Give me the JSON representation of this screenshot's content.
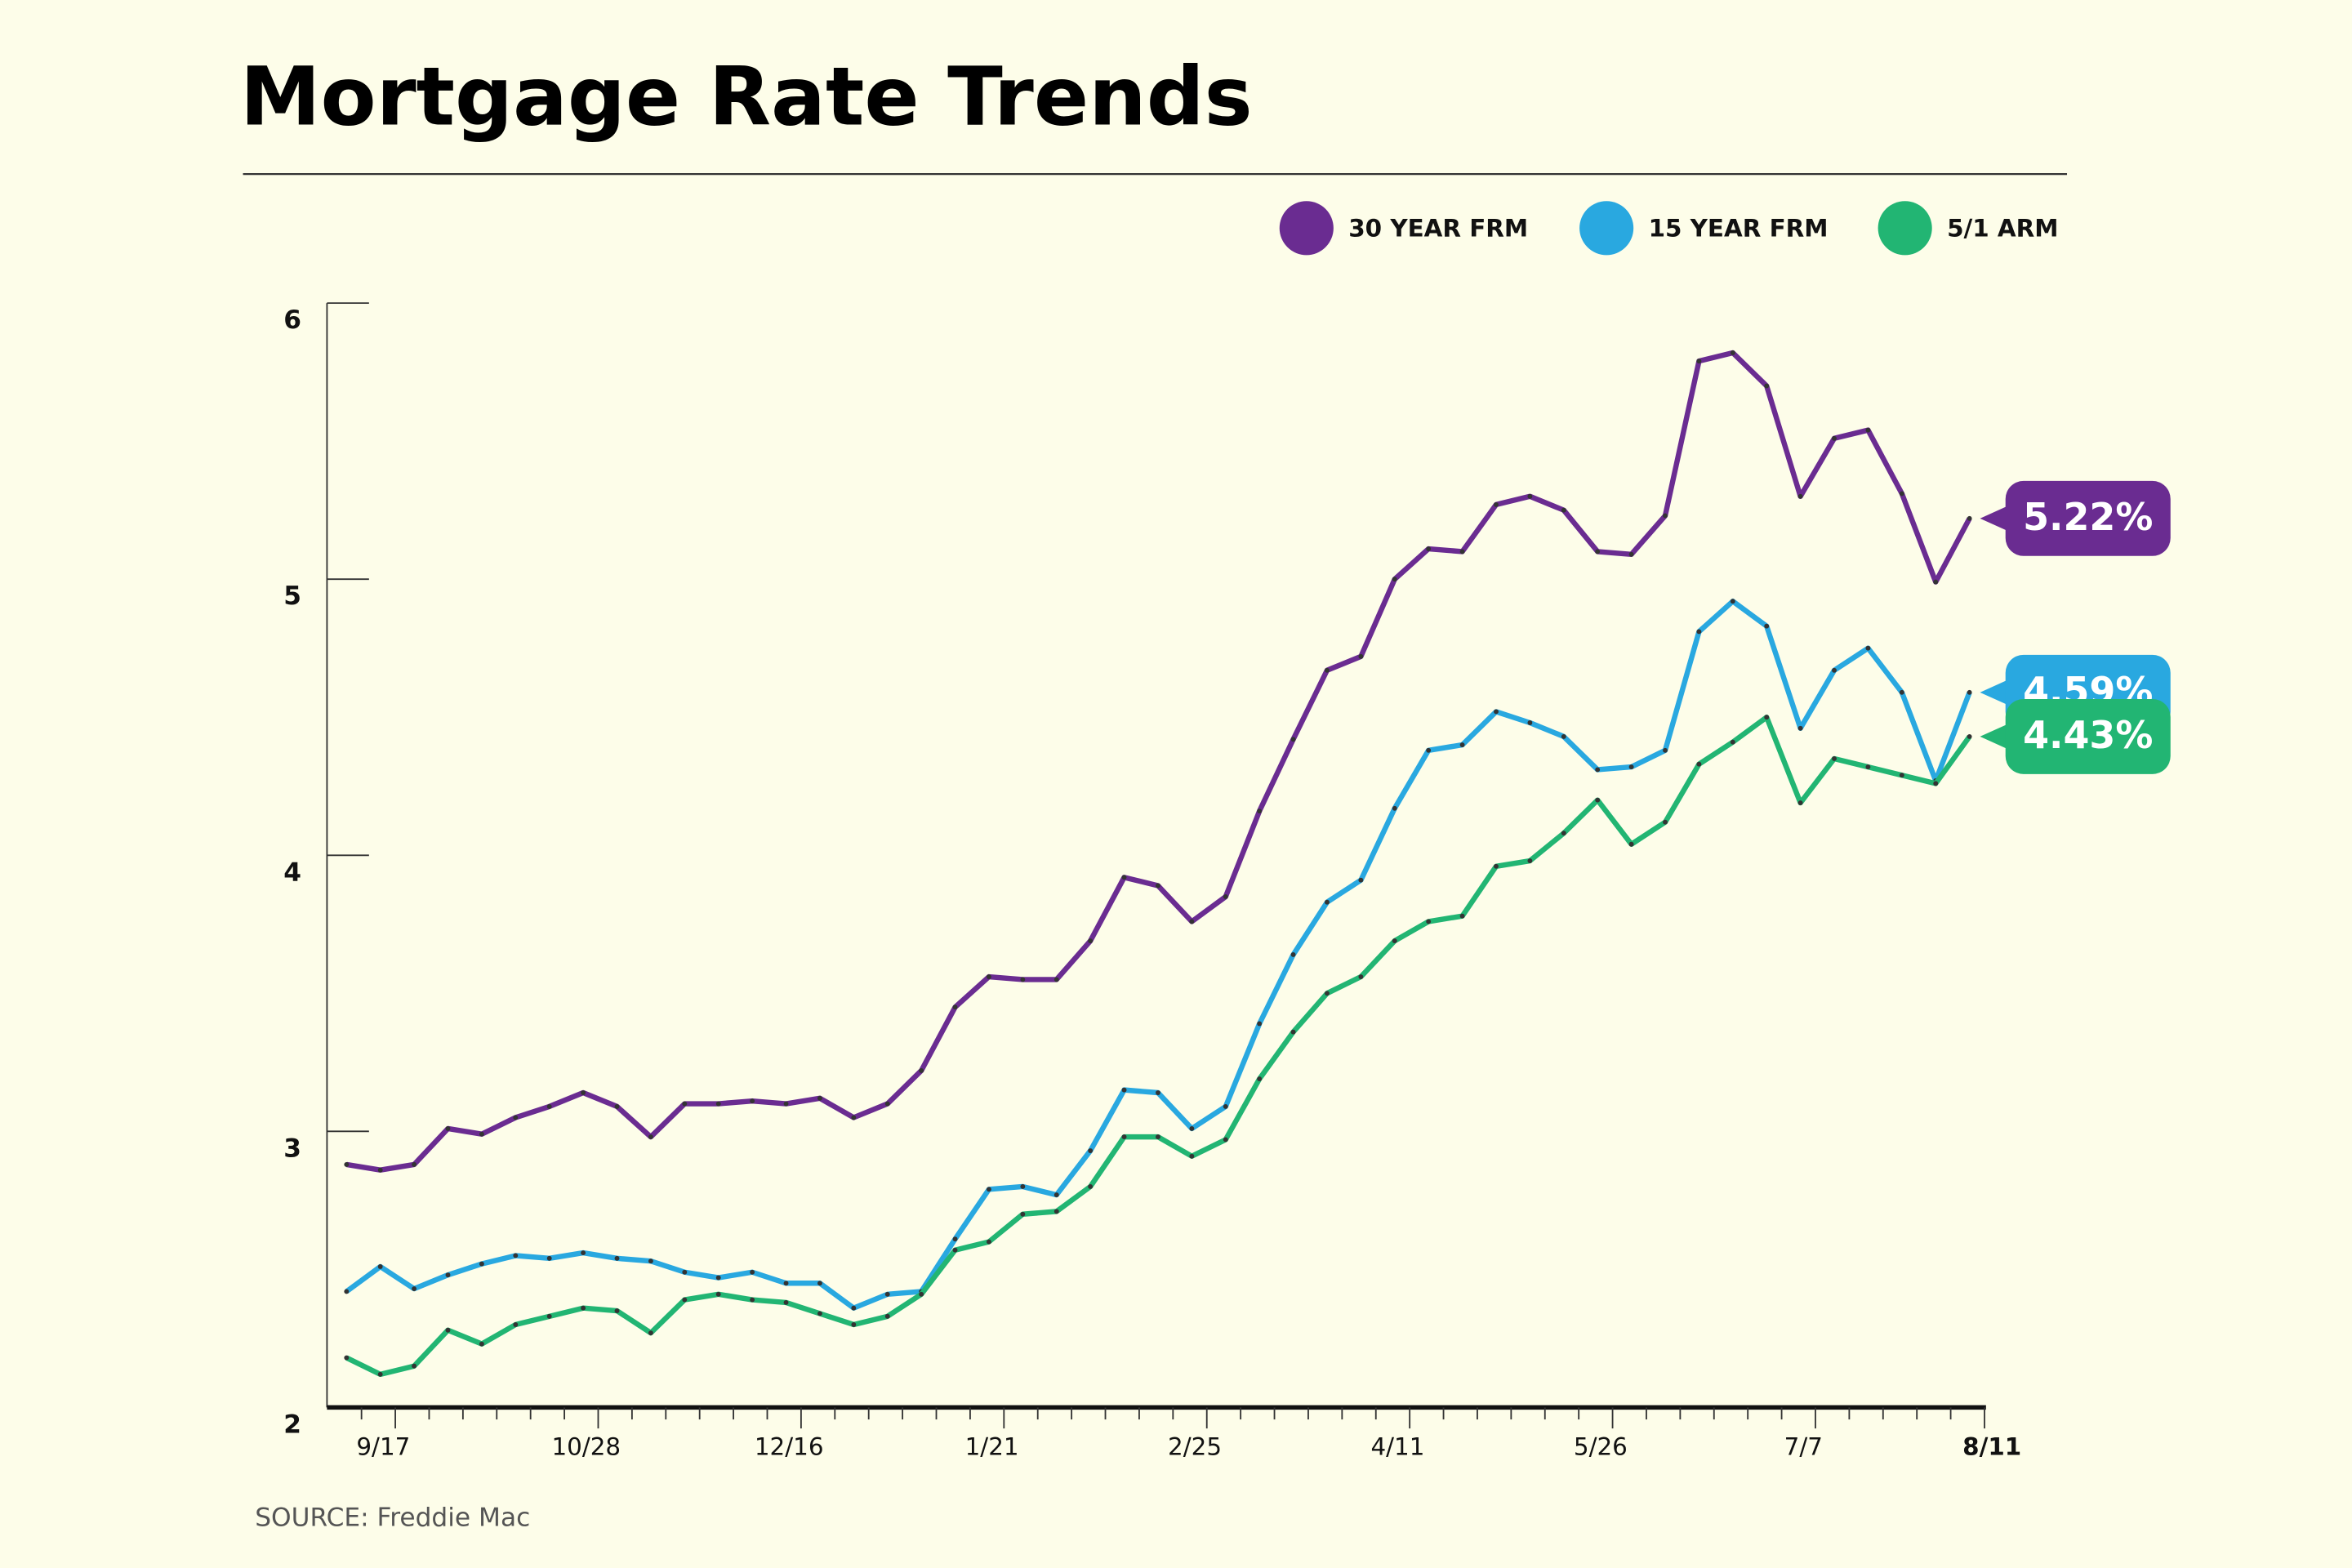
{
  "chart_data": {
    "type": "line",
    "title": "Mortgage Rate Trends",
    "source": "SOURCE: Freddie Mac",
    "categories": [
      null,
      "9/17",
      null,
      null,
      null,
      null,
      null,
      "10/28",
      null,
      null,
      null,
      null,
      null,
      "12/16",
      null,
      null,
      null,
      null,
      null,
      "1/21",
      null,
      null,
      null,
      null,
      null,
      "2/25",
      null,
      null,
      null,
      null,
      null,
      "4/11",
      null,
      null,
      null,
      null,
      null,
      "5/26",
      null,
      null,
      null,
      null,
      null,
      "7/7",
      null,
      null,
      null,
      null,
      "8/11"
    ],
    "ylim": [
      2,
      6
    ],
    "yticks": [
      2,
      3,
      4,
      5,
      6
    ],
    "series": [
      {
        "name": "30 YEAR FRM",
        "color": "#6a2c91",
        "values": [
          2.88,
          2.86,
          2.88,
          3.01,
          2.99,
          3.05,
          3.09,
          3.14,
          3.09,
          2.98,
          3.1,
          3.1,
          3.11,
          3.1,
          3.12,
          3.05,
          3.1,
          3.22,
          3.45,
          3.56,
          3.55,
          3.55,
          3.69,
          3.92,
          3.89,
          3.76,
          3.85,
          4.16,
          4.42,
          4.67,
          4.72,
          5.0,
          5.11,
          5.1,
          5.27,
          5.3,
          5.25,
          5.1,
          5.09,
          5.23,
          5.79,
          5.82,
          5.7,
          5.3,
          5.51,
          5.54,
          5.31,
          4.99,
          5.22
        ],
        "value_labels": [
          null,
          null,
          null,
          null,
          null,
          null,
          null,
          null,
          null,
          null,
          null,
          null,
          null,
          null,
          null,
          null,
          null,
          null,
          null,
          null,
          null,
          null,
          null,
          null,
          null,
          null,
          null,
          null,
          null,
          null,
          null,
          null,
          null,
          null,
          null,
          null,
          null,
          null,
          null,
          null,
          null,
          null,
          null,
          null,
          null,
          null,
          null,
          null,
          "5.22%"
        ]
      },
      {
        "name": "15 YEAR FRM",
        "color": "#29a8e0",
        "values": [
          2.42,
          2.51,
          2.43,
          2.48,
          2.52,
          2.55,
          2.54,
          2.56,
          2.54,
          2.53,
          2.49,
          2.47,
          2.49,
          2.45,
          2.45,
          2.36,
          2.41,
          2.42,
          2.61,
          2.79,
          2.8,
          2.77,
          2.93,
          3.15,
          3.14,
          3.01,
          3.09,
          3.39,
          3.64,
          3.83,
          3.91,
          4.17,
          4.38,
          4.4,
          4.52,
          4.48,
          4.43,
          4.31,
          4.32,
          4.38,
          4.81,
          4.92,
          4.83,
          4.46,
          4.67,
          4.75,
          4.59,
          4.27,
          4.59
        ],
        "value_labels": [
          null,
          null,
          null,
          null,
          null,
          null,
          null,
          null,
          null,
          null,
          null,
          null,
          null,
          null,
          null,
          null,
          null,
          null,
          null,
          null,
          null,
          null,
          null,
          null,
          null,
          null,
          null,
          null,
          null,
          null,
          null,
          null,
          null,
          null,
          null,
          null,
          null,
          null,
          null,
          null,
          null,
          null,
          null,
          null,
          null,
          null,
          null,
          null,
          "4.59%"
        ]
      },
      {
        "name": "5/1 ARM",
        "color": "#22b573",
        "values": [
          2.18,
          2.12,
          2.15,
          2.28,
          2.23,
          2.3,
          2.33,
          2.36,
          2.35,
          2.27,
          2.39,
          2.41,
          2.39,
          2.38,
          2.34,
          2.3,
          2.33,
          2.41,
          2.57,
          2.6,
          2.7,
          2.71,
          2.8,
          2.98,
          2.98,
          2.91,
          2.97,
          3.19,
          3.36,
          3.5,
          3.56,
          3.69,
          3.76,
          3.78,
          3.96,
          3.98,
          4.08,
          4.2,
          4.04,
          4.12,
          4.33,
          4.41,
          4.5,
          4.19,
          4.35,
          4.32,
          4.29,
          4.26,
          4.43
        ],
        "value_labels": [
          null,
          null,
          null,
          null,
          null,
          null,
          null,
          null,
          null,
          null,
          null,
          null,
          null,
          null,
          null,
          null,
          null,
          null,
          null,
          null,
          null,
          null,
          null,
          null,
          null,
          null,
          null,
          null,
          null,
          null,
          null,
          null,
          null,
          null,
          null,
          null,
          null,
          null,
          null,
          null,
          null,
          null,
          null,
          null,
          null,
          null,
          null,
          null,
          "4.43%"
        ]
      }
    ]
  }
}
